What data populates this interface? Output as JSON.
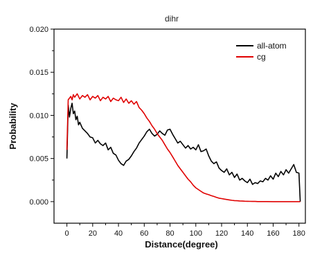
{
  "chart_data": {
    "type": "line",
    "title": "dihr",
    "xlabel": "Distance(degree)",
    "ylabel": "Probability",
    "xlim": [
      -10,
      185
    ],
    "ylim": [
      -0.0025,
      0.02
    ],
    "xticks": [
      0,
      20,
      40,
      60,
      80,
      100,
      120,
      140,
      160,
      180
    ],
    "yticks": [
      0.0,
      0.005,
      0.01,
      0.015,
      0.02
    ],
    "ytick_labels": [
      "0.000",
      "0.005",
      "0.010",
      "0.015",
      "0.020"
    ],
    "grid": false,
    "legend_position": "top-right",
    "series": [
      {
        "name": "all-atom",
        "color": "#000000",
        "x": [
          0,
          1,
          2,
          3,
          4,
          5,
          6,
          7,
          8,
          9,
          10,
          12,
          14,
          16,
          18,
          20,
          22,
          24,
          26,
          28,
          30,
          32,
          34,
          36,
          38,
          40,
          42,
          44,
          46,
          48,
          50,
          52,
          54,
          56,
          58,
          60,
          62,
          64,
          66,
          68,
          70,
          72,
          74,
          76,
          78,
          80,
          82,
          84,
          86,
          88,
          90,
          92,
          94,
          96,
          98,
          100,
          102,
          104,
          106,
          108,
          110,
          112,
          114,
          116,
          118,
          120,
          122,
          124,
          126,
          128,
          130,
          132,
          134,
          136,
          138,
          140,
          142,
          144,
          146,
          148,
          150,
          152,
          154,
          156,
          158,
          160,
          162,
          164,
          166,
          168,
          170,
          172,
          174,
          176,
          178,
          180,
          181
        ],
        "y": [
          0.005,
          0.0112,
          0.0098,
          0.0108,
          0.0114,
          0.0102,
          0.0105,
          0.0095,
          0.0099,
          0.0089,
          0.0092,
          0.0085,
          0.0082,
          0.0079,
          0.0075,
          0.0074,
          0.0068,
          0.0071,
          0.0067,
          0.0065,
          0.0068,
          0.006,
          0.0063,
          0.0056,
          0.0054,
          0.0048,
          0.0044,
          0.0042,
          0.0047,
          0.0049,
          0.0053,
          0.0058,
          0.0062,
          0.0068,
          0.0072,
          0.0076,
          0.0081,
          0.0084,
          0.0079,
          0.0076,
          0.0078,
          0.0082,
          0.0079,
          0.0077,
          0.0083,
          0.0084,
          0.0078,
          0.0073,
          0.0068,
          0.007,
          0.0066,
          0.0062,
          0.0065,
          0.0061,
          0.0063,
          0.006,
          0.0066,
          0.0058,
          0.0059,
          0.0061,
          0.0053,
          0.0047,
          0.0044,
          0.0046,
          0.0039,
          0.0036,
          0.0034,
          0.0038,
          0.0031,
          0.0034,
          0.0028,
          0.0032,
          0.0025,
          0.0027,
          0.0024,
          0.0022,
          0.0026,
          0.002,
          0.0022,
          0.0021,
          0.0024,
          0.0023,
          0.0027,
          0.0025,
          0.003,
          0.0026,
          0.0033,
          0.0029,
          0.0035,
          0.0031,
          0.0037,
          0.0033,
          0.0038,
          0.0043,
          0.0034,
          0.0033,
          0.0
        ]
      },
      {
        "name": "cg",
        "color": "#e00000",
        "x": [
          0,
          1,
          2,
          3,
          4,
          5,
          6,
          8,
          10,
          12,
          14,
          16,
          18,
          20,
          22,
          24,
          26,
          28,
          30,
          32,
          34,
          36,
          38,
          40,
          42,
          44,
          46,
          48,
          50,
          52,
          54,
          56,
          58,
          60,
          62,
          64,
          66,
          68,
          70,
          72,
          74,
          76,
          78,
          80,
          82,
          84,
          86,
          88,
          90,
          92,
          94,
          96,
          98,
          100,
          102,
          104,
          106,
          108,
          110,
          112,
          114,
          116,
          118,
          120,
          122,
          124,
          126,
          128,
          130,
          132,
          134,
          136,
          138,
          140,
          142,
          144,
          146,
          148,
          150,
          155,
          160,
          165,
          170,
          175,
          180,
          181
        ],
        "y": [
          0.006,
          0.0118,
          0.012,
          0.0122,
          0.0118,
          0.0124,
          0.0121,
          0.0125,
          0.0119,
          0.0123,
          0.0121,
          0.0124,
          0.0118,
          0.0122,
          0.012,
          0.0123,
          0.0117,
          0.0121,
          0.0119,
          0.0122,
          0.0116,
          0.012,
          0.0118,
          0.0117,
          0.0121,
          0.0115,
          0.0119,
          0.0114,
          0.0117,
          0.0113,
          0.0116,
          0.0109,
          0.0106,
          0.0102,
          0.0097,
          0.0093,
          0.0088,
          0.0084,
          0.0079,
          0.0075,
          0.0071,
          0.0066,
          0.0061,
          0.0057,
          0.0052,
          0.0047,
          0.0042,
          0.0038,
          0.0034,
          0.003,
          0.0026,
          0.0023,
          0.0019,
          0.0016,
          0.0014,
          0.0012,
          0.001,
          0.0009,
          0.0008,
          0.0007,
          0.0006,
          0.0005,
          0.0004,
          0.00035,
          0.0003,
          0.00025,
          0.0002,
          0.00015,
          0.00012,
          0.0001,
          8e-05,
          6e-05,
          5e-05,
          4e-05,
          3e-05,
          2e-05,
          2e-05,
          1e-05,
          1e-05,
          1e-05,
          0.0,
          0.0,
          0.0,
          0.0,
          0.0,
          0.0
        ]
      }
    ]
  }
}
